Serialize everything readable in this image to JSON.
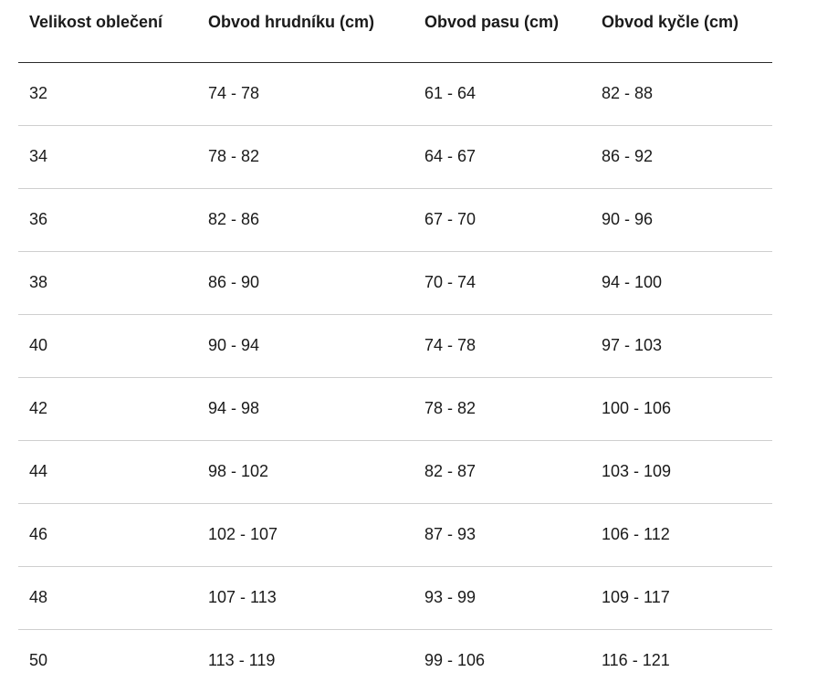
{
  "table": {
    "headers": [
      "Velikost oblečení",
      "Obvod hrudníku (cm)",
      "Obvod pasu (cm)",
      "Obvod kyčle (cm)"
    ],
    "rows": [
      [
        "32",
        "74 - 78",
        "61 - 64",
        "82 - 88"
      ],
      [
        "34",
        "78 - 82",
        "64 - 67",
        "86 - 92"
      ],
      [
        "36",
        "82 - 86",
        "67 - 70",
        "90 - 96"
      ],
      [
        "38",
        "86 - 90",
        "70 - 74",
        "94 - 100"
      ],
      [
        "40",
        "90 - 94",
        "74 - 78",
        "97 - 103"
      ],
      [
        "42",
        "94 - 98",
        "78 - 82",
        "100 - 106"
      ],
      [
        "44",
        "98 - 102",
        "82 - 87",
        "103 - 109"
      ],
      [
        "46",
        "102 - 107",
        "87 - 93",
        "106 - 112"
      ],
      [
        "48",
        "107 - 113",
        "93 - 99",
        "109 - 117"
      ],
      [
        "50",
        "113 - 119",
        "99 - 106",
        "116 - 121"
      ]
    ]
  }
}
